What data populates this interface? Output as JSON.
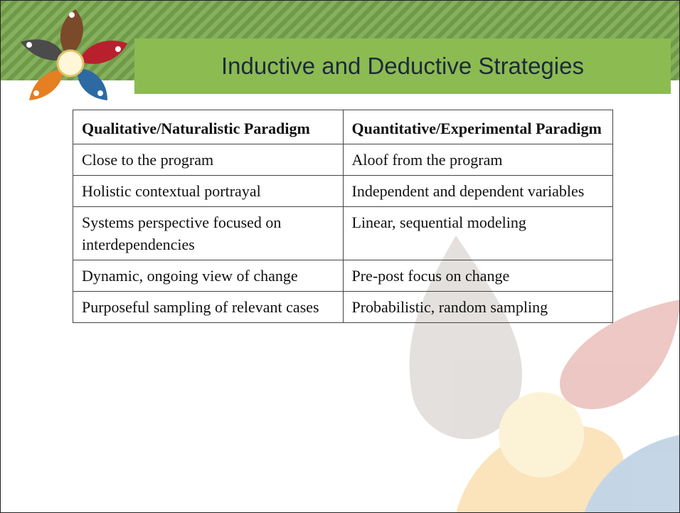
{
  "header": {
    "title": "Inductive and Deductive Strategies"
  },
  "table": {
    "header": [
      "Qualitative/Naturalistic Paradigm",
      "Quantitative/Experimental Paradigm"
    ],
    "rows": [
      [
        "Close to the program",
        "Aloof from the program"
      ],
      [
        "Holistic contextual portrayal",
        "Independent and dependent variables"
      ],
      [
        "Systems perspective focused on interdependencies",
        "Linear, sequential modeling"
      ],
      [
        "Dynamic, ongoing view of change",
        "Pre-post focus on change"
      ],
      [
        "Purposeful sampling of relevant cases",
        "Probabilistic, random sampling"
      ]
    ]
  }
}
